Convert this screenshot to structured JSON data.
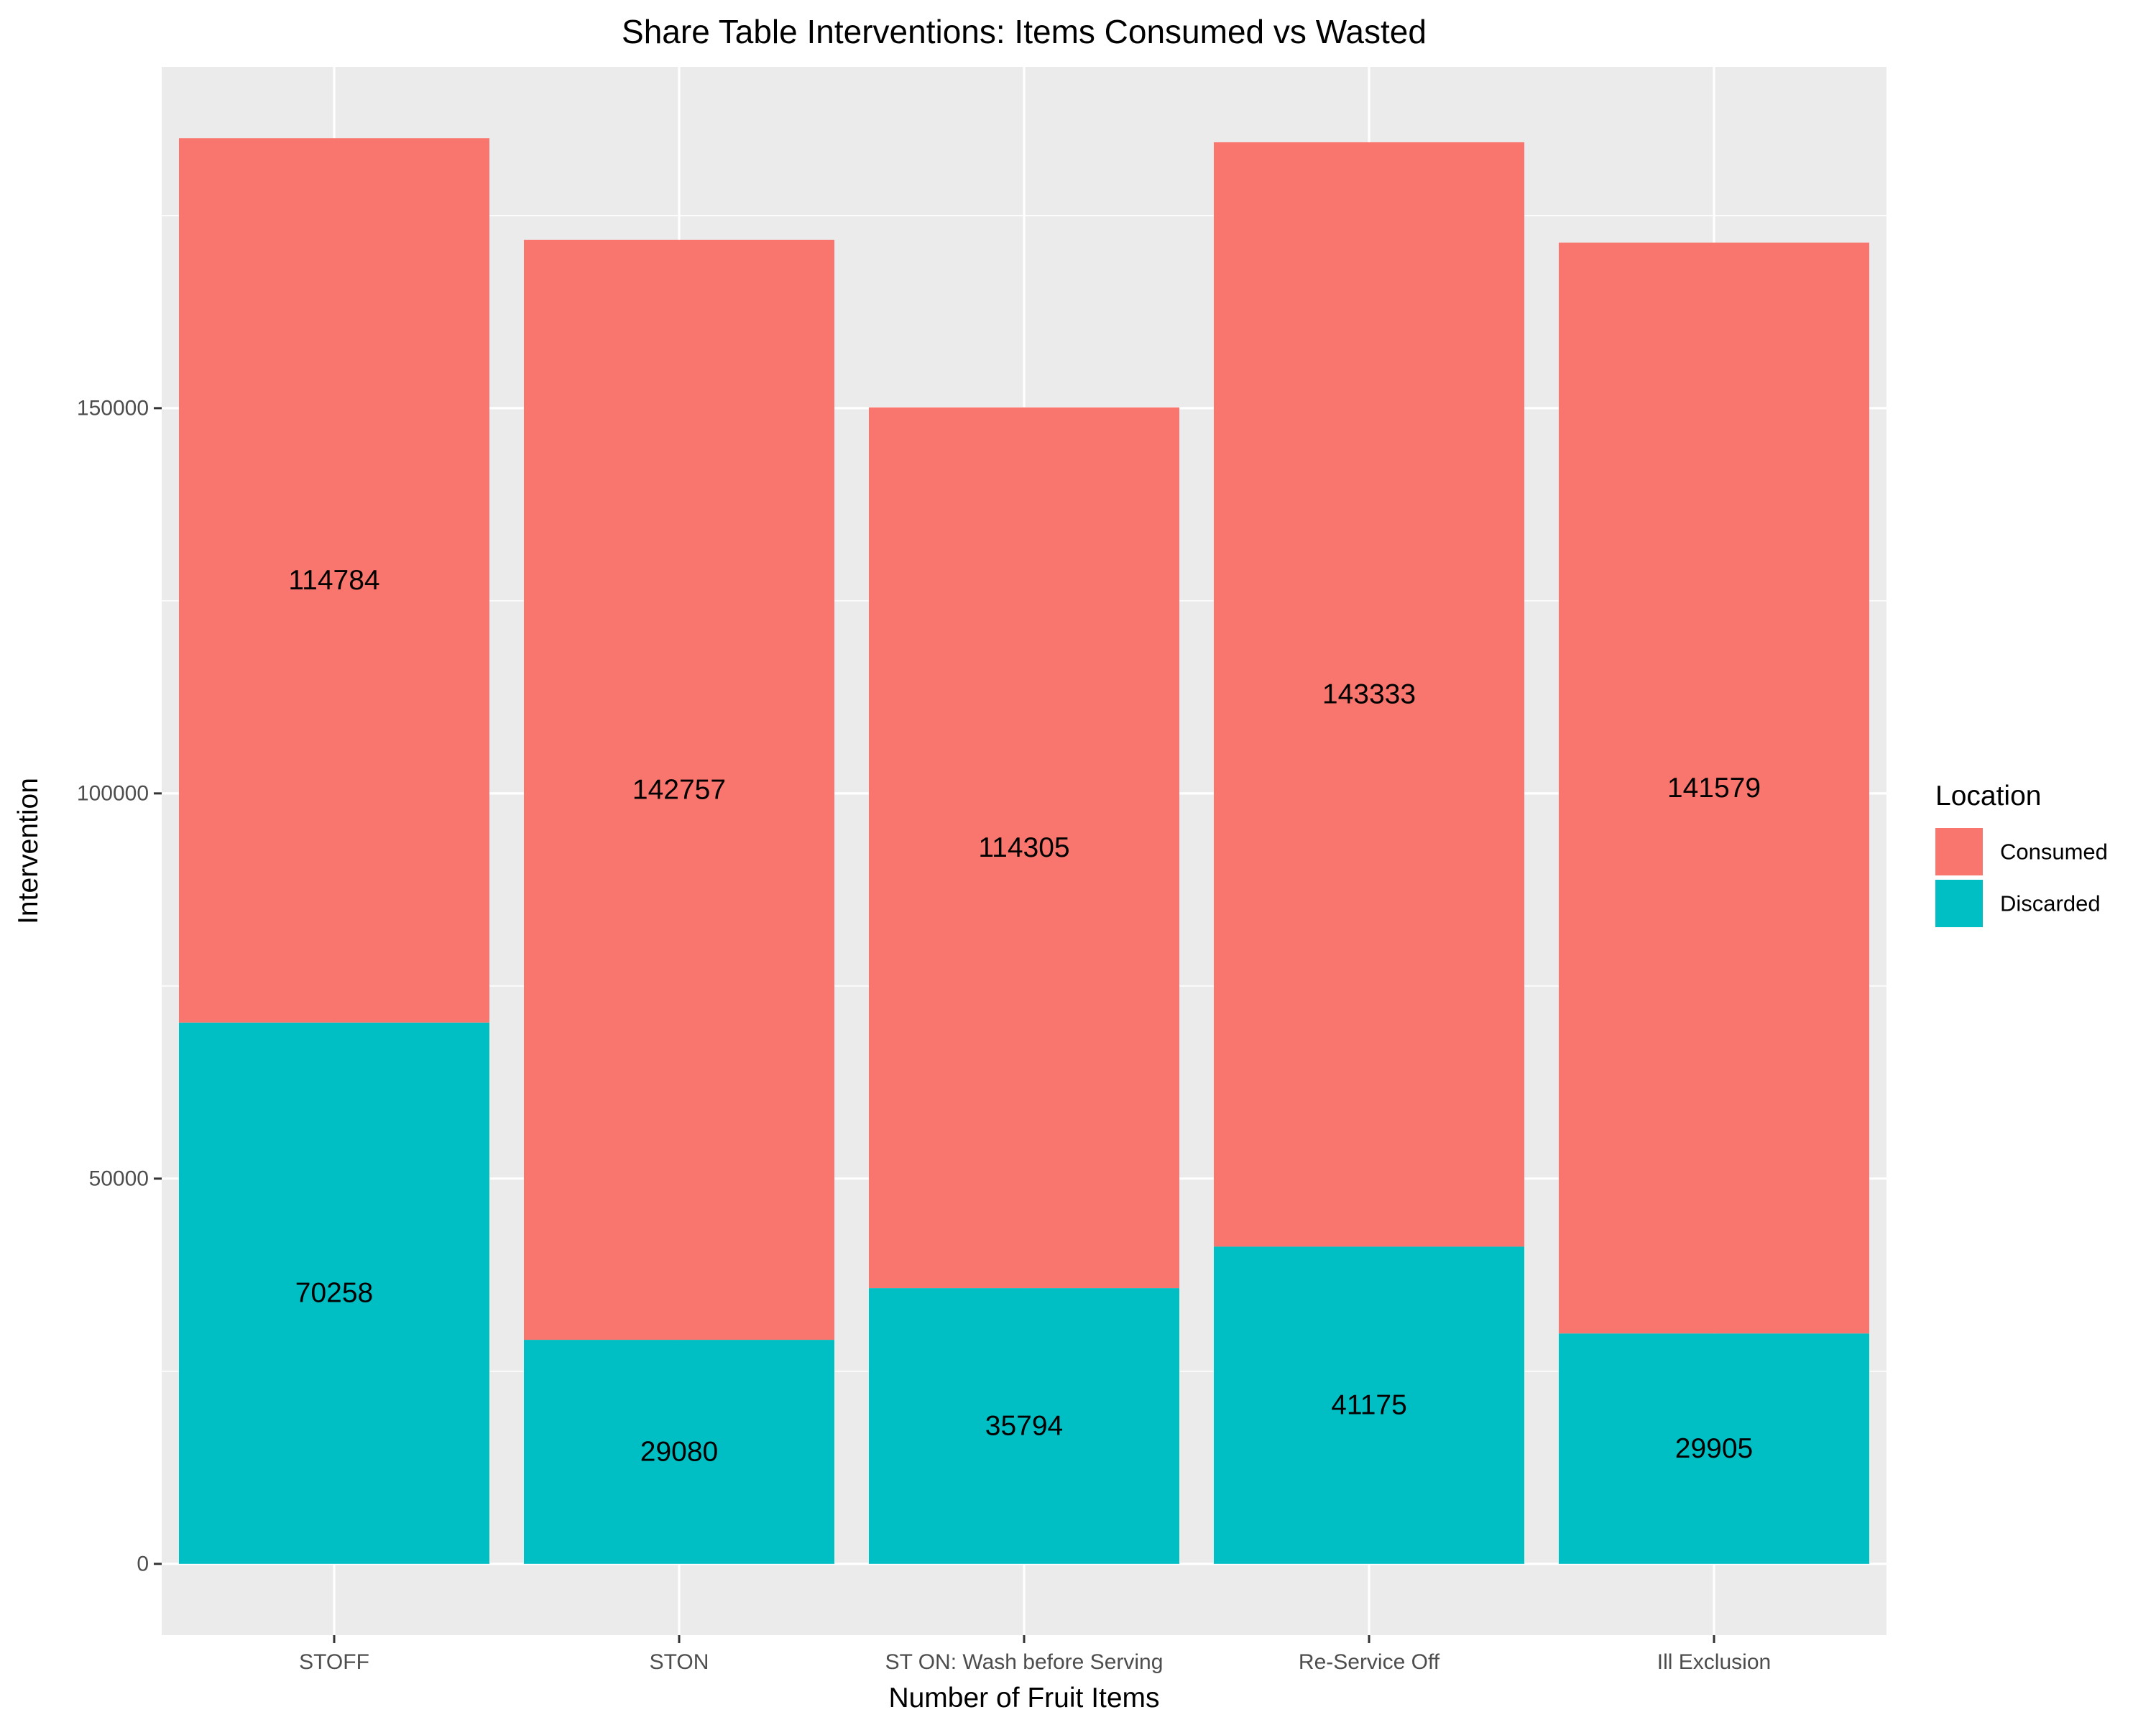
{
  "chart_data": {
    "type": "bar",
    "stacked": true,
    "title": "Share Table Interventions: Items Consumed vs Wasted",
    "xlabel": "Number of Fruit Items",
    "ylabel": "Intervention",
    "categories": [
      "STOFF",
      "STON",
      "ST ON: Wash before Serving",
      "Re-Service Off",
      "Ill Exclusion"
    ],
    "series": [
      {
        "name": "Discarded",
        "color": "#00BFC4",
        "values": [
          70258,
          29080,
          35794,
          41175,
          29905
        ]
      },
      {
        "name": "Consumed",
        "color": "#F8766D",
        "values": [
          114784,
          142757,
          114305,
          143333,
          141579
        ]
      }
    ],
    "ylim": [
      -9253,
      194300
    ],
    "yticks": [
      0,
      50000,
      100000,
      150000
    ],
    "ytick_labels": [
      "0",
      "50000",
      "100000",
      "150000"
    ],
    "legend": {
      "title": "Location",
      "placement": "right",
      "entries": [
        {
          "label": "Consumed",
          "color": "#F8766D"
        },
        {
          "label": "Discarded",
          "color": "#00BFC4"
        }
      ]
    },
    "grid": true,
    "panel_background": "#EBEBEB"
  }
}
